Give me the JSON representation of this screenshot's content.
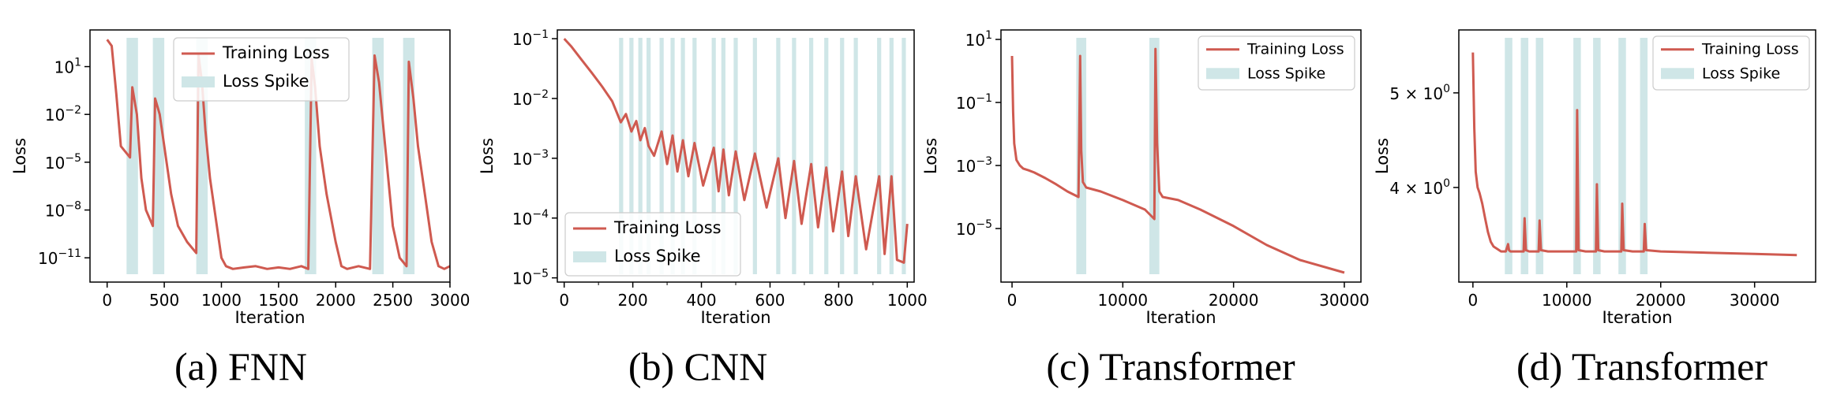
{
  "colors": {
    "loss_line": "#cf5a50",
    "spike_band": "#cfe6e7",
    "axes": "#000000",
    "background": "#ffffff"
  },
  "chart_data": [
    {
      "type": "line",
      "caption": "(a) FNN",
      "xlabel": "Iteration",
      "ylabel": "Loss",
      "yscale": "log",
      "xlim": [
        -150,
        3000
      ],
      "ylim": [
        3e-13,
        2000
      ],
      "x_ticks": [
        0,
        500,
        1000,
        1500,
        2000,
        2500,
        3000
      ],
      "x_tick_labels": [
        "0",
        "500",
        "1000",
        "1500",
        "2000",
        "2500",
        "3000"
      ],
      "y_ticks": [
        1e-11,
        1e-08,
        1e-05,
        0.01,
        10
      ],
      "y_tick_labels": [
        {
          "base": "10",
          "exp": "−11"
        },
        {
          "base": "10",
          "exp": "−8"
        },
        {
          "base": "10",
          "exp": "−5"
        },
        {
          "base": "10",
          "exp": "−2"
        },
        {
          "base": "10",
          "exp": "1"
        }
      ],
      "legend": {
        "position": "upper-center",
        "entries": [
          "Training Loss",
          "Loss Spike"
        ]
      },
      "spike_intervals": [
        [
          170,
          270
        ],
        [
          400,
          500
        ],
        [
          780,
          880
        ],
        [
          1730,
          1830
        ],
        [
          2320,
          2420
        ],
        [
          2590,
          2690
        ]
      ],
      "series": [
        {
          "name": "Training Loss",
          "x": [
            0,
            40,
            80,
            120,
            200,
            220,
            260,
            300,
            340,
            400,
            420,
            460,
            500,
            560,
            620,
            700,
            780,
            800,
            830,
            860,
            900,
            960,
            1000,
            1040,
            1100,
            1200,
            1300,
            1400,
            1500,
            1600,
            1700,
            1760,
            1790,
            1820,
            1860,
            1920,
            2000,
            2050,
            2100,
            2200,
            2300,
            2340,
            2380,
            2420,
            2460,
            2500,
            2560,
            2620,
            2640,
            2680,
            2720,
            2780,
            2840,
            2900,
            2950,
            3000
          ],
          "y": [
            500,
            200,
            0.2,
            0.0001,
            2e-05,
            0.5,
            0.01,
            1e-06,
            1e-08,
            1e-09,
            0.1,
            0.01,
            0.0001,
            1e-07,
            1e-09,
            1e-10,
            2e-11,
            50,
            1,
            0.001,
            1e-06,
            1e-09,
            1e-11,
            3e-12,
            2e-12,
            2.5e-12,
            3e-12,
            2e-12,
            2.5e-12,
            2e-12,
            3e-12,
            2e-12,
            30,
            0.5,
            0.0001,
            1e-07,
            1e-10,
            3e-12,
            2e-12,
            3e-12,
            2e-12,
            50,
            1,
            0.001,
            1e-06,
            1e-09,
            1e-11,
            3e-12,
            20,
            0.1,
            0.0001,
            1e-07,
            1e-10,
            3e-12,
            2e-12,
            3e-12
          ]
        }
      ]
    },
    {
      "type": "line",
      "caption": "(b) CNN",
      "xlabel": "Iteration",
      "ylabel": "Loss",
      "yscale": "log",
      "xlim": [
        -20,
        1020
      ],
      "ylim": [
        8.5e-06,
        0.14
      ],
      "x_ticks": [
        0,
        200,
        400,
        600,
        800,
        1000
      ],
      "x_tick_labels": [
        "0",
        "200",
        "400",
        "600",
        "800",
        "1000"
      ],
      "x_minor_ticks": [
        100,
        300,
        500,
        700,
        900
      ],
      "y_ticks": [
        1e-05,
        0.0001,
        0.001,
        0.01,
        0.1
      ],
      "y_tick_labels": [
        {
          "base": "10",
          "exp": "−5"
        },
        {
          "base": "10",
          "exp": "−4"
        },
        {
          "base": "10",
          "exp": "−3"
        },
        {
          "base": "10",
          "exp": "−2"
        },
        {
          "base": "10",
          "exp": "−1"
        }
      ],
      "legend": {
        "position": "lower-left",
        "entries": [
          "Training Loss",
          "Loss Spike"
        ]
      },
      "spike_intervals": [
        [
          160,
          172
        ],
        [
          190,
          202
        ],
        [
          216,
          228
        ],
        [
          240,
          252
        ],
        [
          278,
          290
        ],
        [
          310,
          322
        ],
        [
          340,
          352
        ],
        [
          374,
          386
        ],
        [
          430,
          442
        ],
        [
          458,
          470
        ],
        [
          494,
          506
        ],
        [
          550,
          562
        ],
        [
          618,
          630
        ],
        [
          664,
          676
        ],
        [
          714,
          726
        ],
        [
          758,
          770
        ],
        [
          804,
          816
        ],
        [
          844,
          856
        ],
        [
          912,
          924
        ],
        [
          948,
          960
        ],
        [
          984,
          996
        ]
      ],
      "series": [
        {
          "name": "Training Loss",
          "x": [
            0,
            20,
            50,
            80,
            110,
            140,
            165,
            180,
            196,
            210,
            222,
            235,
            246,
            262,
            284,
            300,
            316,
            330,
            346,
            362,
            380,
            405,
            436,
            450,
            464,
            480,
            500,
            525,
            556,
            590,
            624,
            645,
            670,
            692,
            720,
            740,
            764,
            784,
            810,
            828,
            850,
            880,
            918,
            934,
            954,
            970,
            990,
            1000
          ],
          "y": [
            0.1,
            0.075,
            0.045,
            0.027,
            0.016,
            0.009,
            0.004,
            0.0055,
            0.0028,
            0.0042,
            0.002,
            0.0032,
            0.0016,
            0.0011,
            0.0028,
            0.0008,
            0.0024,
            0.0006,
            0.002,
            0.0005,
            0.0018,
            0.00035,
            0.0015,
            0.00028,
            0.0014,
            0.00024,
            0.0013,
            0.0002,
            0.0012,
            0.00015,
            0.001,
            0.0001,
            0.0009,
            8e-05,
            0.0008,
            7e-05,
            0.0007,
            6e-05,
            0.0006,
            5e-05,
            0.0005,
            3e-05,
            0.0005,
            2.5e-05,
            0.0005,
            2e-05,
            1.8e-05,
            8e-05
          ]
        }
      ]
    },
    {
      "type": "line",
      "caption": "(c) Transformer",
      "xlabel": "Iteration",
      "ylabel": "Loss",
      "yscale": "log",
      "xlim": [
        -1000,
        31500
      ],
      "ylim": [
        2e-07,
        20
      ],
      "x_ticks": [
        0,
        10000,
        20000,
        30000
      ],
      "x_tick_labels": [
        "0",
        "10000",
        "20000",
        "30000"
      ],
      "y_ticks": [
        1e-05,
        0.001,
        0.1,
        10
      ],
      "y_tick_labels": [
        {
          "base": "10",
          "exp": "−5"
        },
        {
          "base": "10",
          "exp": "−3"
        },
        {
          "base": "10",
          "exp": "−1"
        },
        {
          "base": "10",
          "exp": "1"
        }
      ],
      "legend": {
        "position": "upper-right",
        "entries": [
          "Training Loss",
          "Loss Spike"
        ]
      },
      "spike_intervals": [
        [
          5800,
          6700
        ],
        [
          12400,
          13300
        ]
      ],
      "series": [
        {
          "name": "Training Loss",
          "x": [
            0,
            100,
            200,
            400,
            700,
            1000,
            1500,
            2000,
            3000,
            4000,
            5000,
            6000,
            6150,
            6250,
            6400,
            6700,
            8000,
            10000,
            12000,
            12850,
            12950,
            13100,
            13300,
            13600,
            15000,
            17000,
            20000,
            23000,
            26000,
            30000
          ],
          "y": [
            3,
            0.05,
            0.005,
            0.0015,
            0.001,
            0.0008,
            0.0007,
            0.0006,
            0.0004,
            0.00025,
            0.00015,
            0.0001,
            3,
            0.003,
            0.0003,
            0.0002,
            0.00015,
            8e-05,
            4e-05,
            2e-05,
            5,
            0.005,
            0.00015,
            0.0001,
            8e-05,
            4e-05,
            1.2e-05,
            3e-06,
            1e-06,
            4e-07
          ]
        }
      ]
    },
    {
      "type": "line",
      "caption": "(d) Transformer",
      "xlabel": "Iteration",
      "ylabel": "Loss",
      "yscale": "log",
      "xlim": [
        -1500,
        36500
      ],
      "ylim": [
        3.2,
        5.8
      ],
      "x_ticks": [
        0,
        10000,
        20000,
        30000
      ],
      "x_tick_labels": [
        "0",
        "10000",
        "20000",
        "30000"
      ],
      "y_ticks": [
        4,
        5
      ],
      "y_tick_labels": [
        {
          "base": "4 × 10",
          "exp": "0"
        },
        {
          "base": "5 × 10",
          "exp": "0"
        }
      ],
      "legend": {
        "position": "upper-right",
        "entries": [
          "Training Loss",
          "Loss Spike"
        ]
      },
      "spike_intervals": [
        [
          3400,
          4200
        ],
        [
          5100,
          5900
        ],
        [
          6700,
          7500
        ],
        [
          10700,
          11500
        ],
        [
          12800,
          13600
        ],
        [
          15500,
          16300
        ],
        [
          17800,
          18600
        ]
      ],
      "series": [
        {
          "name": "Training Loss",
          "x": [
            0,
            150,
            300,
            500,
            700,
            1000,
            1300,
            1600,
            1900,
            2200,
            2600,
            3000,
            3500,
            3750,
            3850,
            4000,
            5000,
            5400,
            5500,
            5650,
            6000,
            7000,
            7100,
            7250,
            8000,
            10000,
            11000,
            11100,
            11250,
            12000,
            13100,
            13200,
            13350,
            14000,
            15800,
            15900,
            16050,
            17000,
            18200,
            18300,
            18450,
            20000,
            25000,
            30000,
            34500
          ],
          "y": [
            5.5,
            4.6,
            4.15,
            4.0,
            3.95,
            3.85,
            3.72,
            3.6,
            3.52,
            3.48,
            3.46,
            3.44,
            3.44,
            3.5,
            3.45,
            3.44,
            3.44,
            3.44,
            3.72,
            3.45,
            3.44,
            3.44,
            3.7,
            3.45,
            3.44,
            3.44,
            3.44,
            4.8,
            3.45,
            3.44,
            3.44,
            4.03,
            3.45,
            3.44,
            3.44,
            3.85,
            3.45,
            3.44,
            3.44,
            3.67,
            3.45,
            3.44,
            3.43,
            3.42,
            3.41
          ]
        }
      ]
    }
  ]
}
